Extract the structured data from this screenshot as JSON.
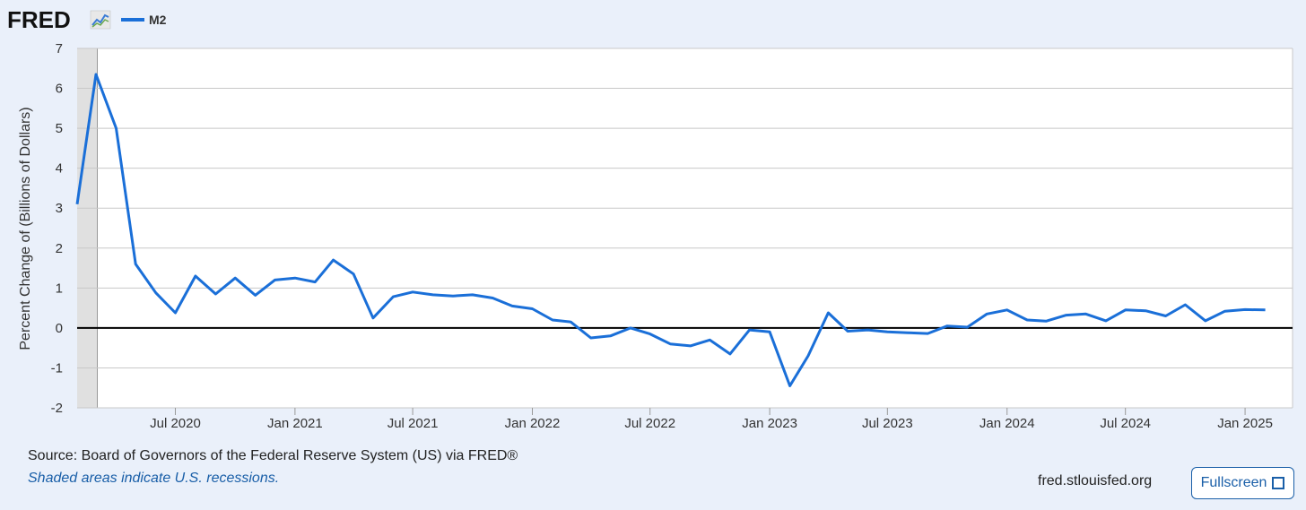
{
  "brand": {
    "logo_text": "FRED",
    "logo_icon": "trend-line-icon"
  },
  "legend": {
    "series_label": "M2",
    "series_color": "#1a6fd8"
  },
  "chart_data": {
    "type": "line",
    "title": "",
    "xlabel": "",
    "ylabel": "Percent Change of (Billions of Dollars)",
    "ylim": [
      -2,
      7
    ],
    "y_ticks": [
      7,
      6,
      5,
      4,
      3,
      2,
      1,
      0,
      -1,
      -2
    ],
    "x_ticks": [
      {
        "label": "Jul 2020",
        "date": "2020-07-01"
      },
      {
        "label": "Jan 2021",
        "date": "2021-01-01"
      },
      {
        "label": "Jul 2021",
        "date": "2021-07-01"
      },
      {
        "label": "Jan 2022",
        "date": "2022-01-01"
      },
      {
        "label": "Jul 2022",
        "date": "2022-07-01"
      },
      {
        "label": "Jan 2023",
        "date": "2023-01-01"
      },
      {
        "label": "Jul 2023",
        "date": "2023-07-01"
      },
      {
        "label": "Jan 2024",
        "date": "2024-01-01"
      },
      {
        "label": "Jul 2024",
        "date": "2024-07-01"
      },
      {
        "label": "Jan 2025",
        "date": "2025-01-01"
      }
    ],
    "recession": {
      "start": "2020-02-01",
      "end": "2020-04-01"
    },
    "zero_line": true,
    "grid": true,
    "series": [
      {
        "name": "M2",
        "color": "#1a6fd8",
        "points": [
          [
            "2020-02-01",
            3.1
          ],
          [
            "2020-03-01",
            6.35
          ],
          [
            "2020-04-01",
            5.0
          ],
          [
            "2020-05-01",
            1.6
          ],
          [
            "2020-06-01",
            0.88
          ],
          [
            "2020-07-01",
            0.38
          ],
          [
            "2020-08-01",
            1.3
          ],
          [
            "2020-09-01",
            0.85
          ],
          [
            "2020-10-01",
            1.25
          ],
          [
            "2020-11-01",
            0.82
          ],
          [
            "2020-12-01",
            1.2
          ],
          [
            "2021-01-01",
            1.25
          ],
          [
            "2021-02-01",
            1.15
          ],
          [
            "2021-03-01",
            1.7
          ],
          [
            "2021-04-01",
            1.35
          ],
          [
            "2021-05-01",
            0.25
          ],
          [
            "2021-06-01",
            0.78
          ],
          [
            "2021-07-01",
            0.9
          ],
          [
            "2021-08-01",
            0.83
          ],
          [
            "2021-09-01",
            0.8
          ],
          [
            "2021-10-01",
            0.83
          ],
          [
            "2021-11-01",
            0.75
          ],
          [
            "2021-12-01",
            0.55
          ],
          [
            "2022-01-01",
            0.48
          ],
          [
            "2022-02-01",
            0.2
          ],
          [
            "2022-03-01",
            0.15
          ],
          [
            "2022-04-01",
            -0.25
          ],
          [
            "2022-05-01",
            -0.2
          ],
          [
            "2022-06-01",
            0.0
          ],
          [
            "2022-07-01",
            -0.15
          ],
          [
            "2022-08-01",
            -0.4
          ],
          [
            "2022-09-01",
            -0.45
          ],
          [
            "2022-10-01",
            -0.3
          ],
          [
            "2022-11-01",
            -0.65
          ],
          [
            "2022-12-01",
            -0.05
          ],
          [
            "2023-01-01",
            -0.1
          ],
          [
            "2023-02-01",
            -1.45
          ],
          [
            "2023-03-01",
            -0.7
          ],
          [
            "2023-04-01",
            0.38
          ],
          [
            "2023-05-01",
            -0.08
          ],
          [
            "2023-06-01",
            -0.05
          ],
          [
            "2023-07-01",
            -0.1
          ],
          [
            "2023-08-01",
            -0.12
          ],
          [
            "2023-09-01",
            -0.14
          ],
          [
            "2023-10-01",
            0.05
          ],
          [
            "2023-11-01",
            0.02
          ],
          [
            "2023-12-01",
            0.35
          ],
          [
            "2024-01-01",
            0.45
          ],
          [
            "2024-02-01",
            0.2
          ],
          [
            "2024-03-01",
            0.17
          ],
          [
            "2024-04-01",
            0.32
          ],
          [
            "2024-05-01",
            0.35
          ],
          [
            "2024-06-01",
            0.18
          ],
          [
            "2024-07-01",
            0.45
          ],
          [
            "2024-08-01",
            0.43
          ],
          [
            "2024-09-01",
            0.3
          ],
          [
            "2024-10-01",
            0.58
          ],
          [
            "2024-11-01",
            0.18
          ],
          [
            "2024-12-01",
            0.42
          ],
          [
            "2025-01-01",
            0.46
          ],
          [
            "2025-02-01",
            0.45
          ]
        ]
      }
    ]
  },
  "footer": {
    "source": "Source: Board of Governors of the Federal Reserve System (US) via FRED®",
    "note": "Shaded areas indicate U.S. recessions.",
    "site": "fred.stlouisfed.org",
    "fullscreen_label": "Fullscreen"
  },
  "colors": {
    "background": "#eaf0fa",
    "plot_background": "#ffffff",
    "grid": "#c8c8c8",
    "recession_shade": "#e0e0e0",
    "zero_line": "#000000",
    "link": "#1a5fa8"
  }
}
